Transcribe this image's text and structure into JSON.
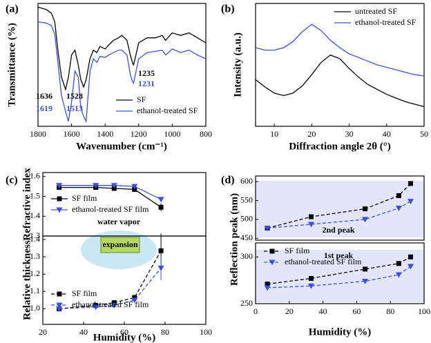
{
  "chart_data": [
    {
      "type": "line",
      "panel": "(a)",
      "ylabel": "Transmittance (%)",
      "xlabel": "Wavenumber (cm⁻¹)",
      "x": [
        1800,
        1750,
        1720,
        1700,
        1680,
        1660,
        1636,
        1619,
        1600,
        1580,
        1560,
        1545,
        1528,
        1513,
        1490,
        1470,
        1450,
        1430,
        1400,
        1380,
        1350,
        1320,
        1300,
        1270,
        1250,
        1235,
        1231,
        1220,
        1200,
        1150,
        1100,
        1060,
        1040,
        1000,
        950,
        900,
        850,
        800
      ],
      "xlim": [
        1800,
        800
      ],
      "xticks": [
        1800,
        1600,
        1400,
        1200,
        1000,
        800
      ],
      "ylim": [
        0,
        100
      ],
      "legend": "lower right",
      "series": [
        {
          "name": "SF",
          "color": "#000000",
          "values": [
            97,
            95,
            92,
            85,
            60,
            40,
            30,
            40,
            58,
            62,
            50,
            38,
            32,
            38,
            55,
            62,
            60,
            65,
            63,
            66,
            70,
            72,
            74,
            70,
            58,
            51,
            50,
            56,
            68,
            72,
            72,
            74,
            70,
            76,
            74,
            76,
            72,
            68
          ]
        },
        {
          "name": "ethanol-treated SF",
          "color": "#3a4fe0",
          "values": [
            85,
            84,
            82,
            75,
            50,
            25,
            12,
            4,
            20,
            45,
            40,
            15,
            8,
            4,
            45,
            55,
            52,
            57,
            56,
            58,
            60,
            62,
            62,
            58,
            42,
            36,
            35,
            42,
            55,
            60,
            61,
            62,
            58,
            63,
            60,
            62,
            58,
            55
          ]
        }
      ],
      "annotations": [
        "1636",
        "1528",
        "1235",
        "1619",
        "1513",
        "1231"
      ]
    },
    {
      "type": "line",
      "panel": "(b)",
      "ylabel": "Intensity (a.u.)",
      "xlabel": "Diffraction angle 2θ (°)",
      "x": [
        5,
        7.5,
        10,
        12.5,
        15,
        17.5,
        20,
        22.5,
        25,
        27.5,
        30,
        32.5,
        35,
        37.5,
        40,
        42.5,
        45,
        47.5,
        50
      ],
      "xlim": [
        5,
        50
      ],
      "xticks": [
        10,
        20,
        30,
        40,
        50
      ],
      "ylim": [
        0,
        100
      ],
      "legend": "upper right",
      "series": [
        {
          "name": "untreated SF",
          "color": "#000000",
          "values": [
            38,
            32,
            27,
            25,
            27,
            33,
            42,
            52,
            58,
            55,
            47,
            40,
            34,
            30,
            26,
            23,
            20,
            18,
            16
          ]
        },
        {
          "name": "ethanol-treated SF",
          "color": "#3a4fe0",
          "values": [
            64,
            62,
            62,
            64,
            69,
            77,
            83,
            78,
            70,
            64,
            59,
            56,
            53,
            50,
            48,
            46,
            44,
            42,
            41
          ]
        }
      ]
    },
    {
      "type": "line",
      "panel": "(c)",
      "ylabel": "Refractive index",
      "x": [
        28,
        46,
        55,
        65,
        78
      ],
      "xlim": [
        20,
        100
      ],
      "ylim": [
        1.3,
        1.62
      ],
      "yticks": [
        1.3,
        1.4,
        1.5,
        1.6
      ],
      "legend": "middle left",
      "series": [
        {
          "name": "SF film",
          "color": "#000000",
          "marker": "square",
          "dashed": false,
          "values": [
            1.545,
            1.545,
            1.54,
            1.535,
            1.445
          ],
          "errors": [
            0.005,
            0.005,
            0.005,
            0.005,
            0.02
          ]
        },
        {
          "name": "ethanol-treated SF film",
          "color": "#3a4fe0",
          "marker": "triangle",
          "dashed": false,
          "values": [
            1.555,
            1.555,
            1.555,
            1.55,
            1.485
          ],
          "errors": [
            0.005,
            0.005,
            0.005,
            0.005,
            0.01
          ]
        }
      ]
    },
    {
      "type": "line",
      "ylabel": "Relative thickness",
      "xlabel": "Humidity (%)",
      "x": [
        28,
        46,
        55,
        65,
        78
      ],
      "xlim": [
        20,
        100
      ],
      "xticks": [
        20,
        40,
        60,
        80,
        100
      ],
      "ylim": [
        0.91,
        1.42
      ],
      "yticks": [
        {
          "value": 1,
          "label": "1.0"
        },
        1.1,
        1.2,
        1.3,
        1.4
      ],
      "legend": "lower left",
      "annotations": [
        "water vapor",
        "expansion"
      ],
      "series": [
        {
          "name": "SF film",
          "color": "#000000",
          "marker": "square",
          "dashed": true,
          "values": [
            1.0,
            1.02,
            1.035,
            1.065,
            1.335
          ],
          "errors": [
            0.005,
            0.005,
            0.008,
            0.015,
            0.1
          ]
        },
        {
          "name": "ethanol-treated SF film",
          "color": "#3a4fe0",
          "marker": "triangle",
          "dashed": true,
          "values": [
            1.0,
            1.01,
            1.02,
            1.05,
            1.235
          ],
          "errors": [
            0.005,
            0.005,
            0.008,
            0.01,
            0.07
          ]
        }
      ]
    },
    {
      "type": "line",
      "panel": "(d)",
      "ylabel": "Reflection peak (nm)",
      "x": [
        7,
        33,
        65,
        85,
        92
      ],
      "xlim": [
        0,
        100
      ],
      "ylim": [
        445,
        615
      ],
      "yticks": [
        450,
        500,
        550,
        600
      ],
      "annotations": [
        "2nd peak"
      ],
      "series": [
        {
          "name": "SF film",
          "color": "#000000",
          "marker": "square",
          "dashed": true,
          "values": [
            477,
            507,
            528,
            563,
            595
          ]
        },
        {
          "name": "ethanol-treated SF film",
          "color": "#3a4fe0",
          "marker": "triangle",
          "dashed": true,
          "values": [
            477,
            487,
            500,
            530,
            548
          ]
        }
      ]
    },
    {
      "type": "line",
      "xlabel": "Humidity (%)",
      "x": [
        7,
        33,
        65,
        85,
        92
      ],
      "xlim": [
        0,
        100
      ],
      "xticks": [
        0,
        20,
        40,
        60,
        80,
        100
      ],
      "ylim": [
        250,
        315
      ],
      "yticks": [
        250,
        300
      ],
      "legend": "upper left",
      "annotations": [
        "1st peak"
      ],
      "series": [
        {
          "name": "SF film",
          "color": "#000000",
          "marker": "square",
          "dashed": true,
          "values": [
            271,
            277,
            287,
            293,
            300
          ]
        },
        {
          "name": "ethanol-treated SF film",
          "color": "#3a4fe0",
          "marker": "triangle",
          "dashed": true,
          "values": [
            267,
            269,
            274,
            281,
            290
          ]
        }
      ]
    }
  ]
}
